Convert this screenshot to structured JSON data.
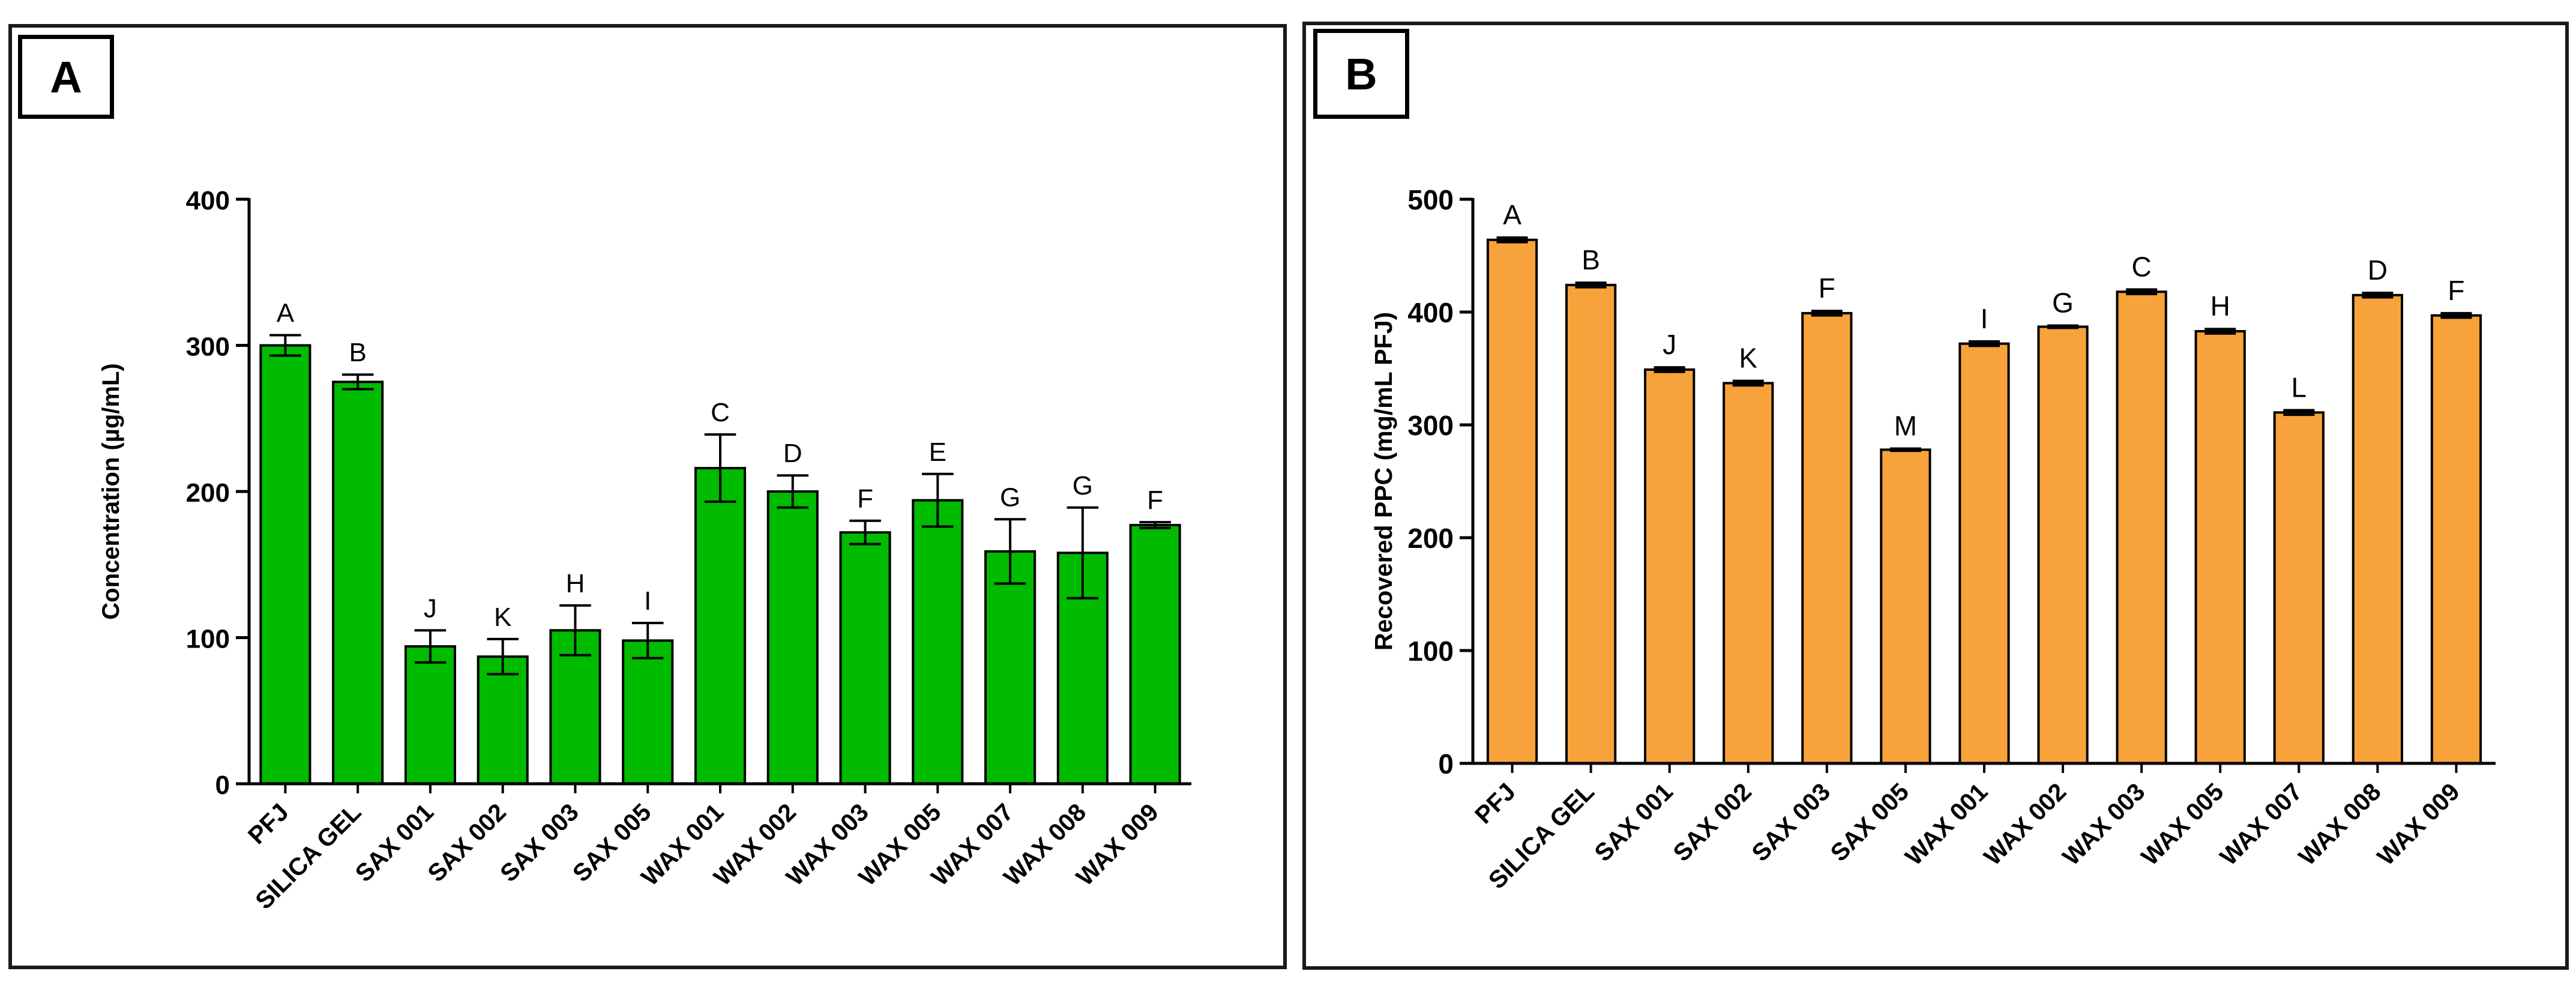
{
  "chart_data": [
    {
      "panel": "A",
      "type": "bar",
      "ylabel": "Concentration (µg/mL)",
      "xlabel": "",
      "ylim": [
        0,
        400
      ],
      "yticks": [
        0,
        100,
        200,
        300,
        400
      ],
      "bar_color": "#00bb00",
      "categories": [
        "PFJ",
        "SILICA GEL",
        "SAX 001",
        "SAX 002",
        "SAX 003",
        "SAX 005",
        "WAX 001",
        "WAX 002",
        "WAX 003",
        "WAX 005",
        "WAX 007",
        "WAX 008",
        "WAX 009"
      ],
      "values": [
        300,
        275,
        94,
        87,
        105,
        98,
        216,
        200,
        172,
        194,
        159,
        158,
        177
      ],
      "errors": [
        7,
        5,
        11,
        12,
        17,
        12,
        23,
        11,
        8,
        18,
        22,
        31,
        2
      ],
      "letters": [
        "A",
        "B",
        "J",
        "K",
        "H",
        "I",
        "C",
        "D",
        "F",
        "E",
        "G",
        "G",
        "F"
      ]
    },
    {
      "panel": "B",
      "type": "bar",
      "ylabel": "Recovered PPC (mg/mL PFJ)",
      "xlabel": "",
      "ylim": [
        0,
        500
      ],
      "yticks": [
        0,
        100,
        200,
        300,
        400,
        500
      ],
      "bar_color": "#f7a23a",
      "categories": [
        "PFJ",
        "SILICA GEL",
        "SAX 001",
        "SAX 002",
        "SAX 003",
        "SAX 005",
        "WAX 001",
        "WAX 002",
        "WAX 003",
        "WAX 005",
        "WAX 007",
        "WAX 008",
        "WAX 009"
      ],
      "values": [
        464,
        424,
        349,
        337,
        399,
        278,
        372,
        387,
        418,
        383,
        311,
        415,
        397
      ],
      "errors": [
        2,
        2,
        2,
        2,
        2,
        1,
        2,
        1,
        2,
        2,
        2,
        2,
        2
      ],
      "letters": [
        "A",
        "B",
        "J",
        "K",
        "F",
        "M",
        "I",
        "G",
        "C",
        "H",
        "L",
        "D",
        "F"
      ]
    }
  ]
}
